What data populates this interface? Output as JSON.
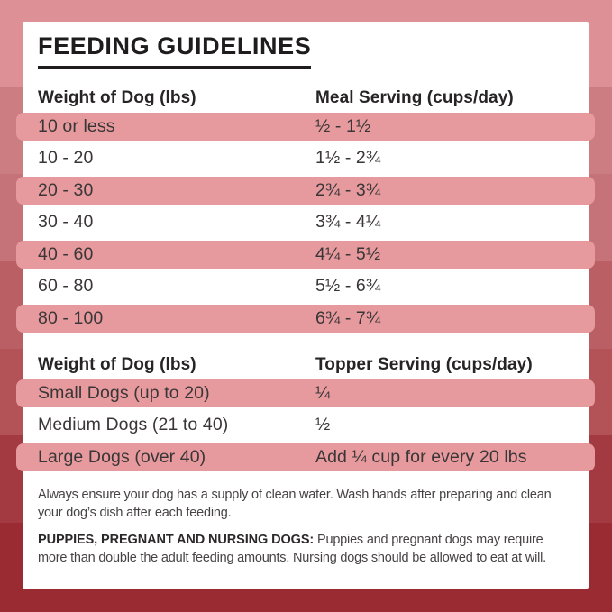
{
  "title": "FEEDING GUIDELINES",
  "colors": {
    "card_bg": "#ffffff",
    "row_pink": "#e69a9e",
    "background_bands": [
      "#dd9095",
      "#cb7d81",
      "#c57378",
      "#ba6065",
      "#b35257",
      "#a43a41",
      "#9b2b33"
    ]
  },
  "meal_table": {
    "col1_header": "Weight of Dog (lbs)",
    "col2_header": "Meal Serving (cups/day)",
    "rows": [
      {
        "weight": "10 or less",
        "serving": "½ - 1½"
      },
      {
        "weight": "10 - 20",
        "serving": "1½ - 2¾"
      },
      {
        "weight": "20 - 30",
        "serving": "2¾ - 3¾"
      },
      {
        "weight": "30 - 40",
        "serving": "3¾ - 4¼"
      },
      {
        "weight": "40 - 60",
        "serving": "4¼ - 5½"
      },
      {
        "weight": "60 - 80",
        "serving": "5½ - 6¾"
      },
      {
        "weight": "80 - 100",
        "serving": "6¾ - 7¾"
      }
    ]
  },
  "topper_table": {
    "col1_header": "Weight of Dog (lbs)",
    "col2_header": "Topper Serving (cups/day)",
    "rows": [
      {
        "weight": "Small Dogs (up to 20)",
        "serving": "¼"
      },
      {
        "weight": "Medium Dogs (21 to 40)",
        "serving": "½"
      },
      {
        "weight": "Large Dogs (over 40)",
        "serving": "Add ¼ cup for every 20 lbs"
      }
    ]
  },
  "footnotes": {
    "water_note": "Always ensure your dog has a supply of clean water. Wash hands after preparing and clean your dog’s dish after each feeding.",
    "special_note_label": "PUPPIES, PREGNANT AND NURSING DOGS:",
    "special_note_text": "Puppies and pregnant dogs may require more than double the adult feeding amounts. Nursing dogs should be allowed to eat at will."
  }
}
